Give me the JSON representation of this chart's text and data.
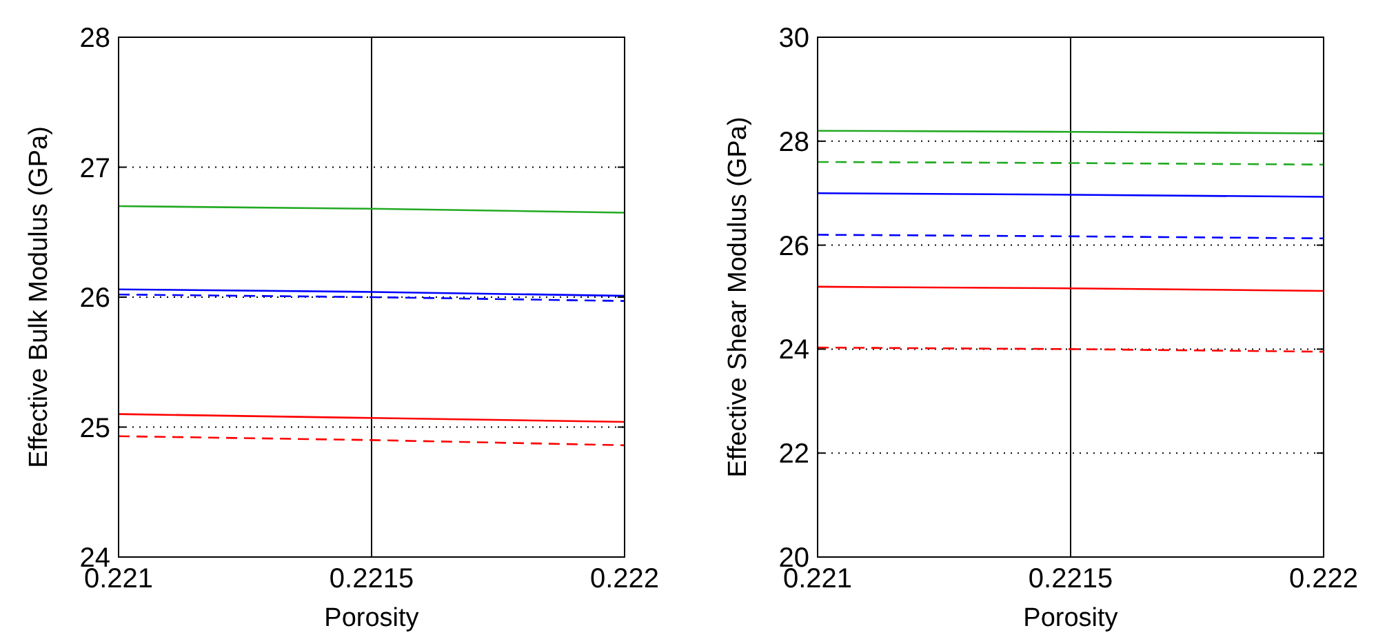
{
  "chart_data": [
    {
      "type": "line",
      "xlabel": "Porosity",
      "ylabel": "Effective Bulk Modulus (GPa)",
      "x": [
        0.221,
        0.2215,
        0.222
      ],
      "xlim": [
        0.221,
        0.222
      ],
      "xticks": [
        0.221,
        0.2215,
        0.222
      ],
      "ylim": [
        24,
        28
      ],
      "yticks": [
        24,
        25,
        26,
        27,
        28
      ],
      "grid": "y",
      "ref_lines": [
        {
          "axis": "x",
          "value": 0.2215,
          "color": "#000000"
        }
      ],
      "series": [
        {
          "color": "#22aa22",
          "line_style": "solid",
          "values": [
            26.7,
            26.68,
            26.65
          ]
        },
        {
          "color": "#0000ff",
          "line_style": "solid",
          "values": [
            26.06,
            26.04,
            26.01
          ]
        },
        {
          "color": "#0000ff",
          "line_style": "dashed",
          "values": [
            26.02,
            26.0,
            25.97
          ]
        },
        {
          "color": "#ff0000",
          "line_style": "solid",
          "values": [
            25.1,
            25.07,
            25.04
          ]
        },
        {
          "color": "#ff0000",
          "line_style": "dashed",
          "values": [
            24.93,
            24.9,
            24.86
          ]
        }
      ]
    },
    {
      "type": "line",
      "xlabel": "Porosity",
      "ylabel": "Effective Shear Modulus (GPa)",
      "x": [
        0.221,
        0.2215,
        0.222
      ],
      "xlim": [
        0.221,
        0.222
      ],
      "xticks": [
        0.221,
        0.2215,
        0.222
      ],
      "ylim": [
        20,
        30
      ],
      "yticks": [
        20,
        22,
        24,
        26,
        28,
        30
      ],
      "grid": "y",
      "ref_lines": [
        {
          "axis": "x",
          "value": 0.2215,
          "color": "#000000"
        }
      ],
      "series": [
        {
          "color": "#22aa22",
          "line_style": "solid",
          "values": [
            28.2,
            28.18,
            28.15
          ]
        },
        {
          "color": "#22aa22",
          "line_style": "dashed",
          "values": [
            27.6,
            27.58,
            27.55
          ]
        },
        {
          "color": "#0000ff",
          "line_style": "solid",
          "values": [
            27.0,
            26.97,
            26.93
          ]
        },
        {
          "color": "#0000ff",
          "line_style": "dashed",
          "values": [
            26.2,
            26.17,
            26.13
          ]
        },
        {
          "color": "#ff0000",
          "line_style": "solid",
          "values": [
            25.2,
            25.17,
            25.12
          ]
        },
        {
          "color": "#ff0000",
          "line_style": "dashed",
          "values": [
            24.03,
            24.0,
            23.95
          ]
        }
      ]
    }
  ]
}
